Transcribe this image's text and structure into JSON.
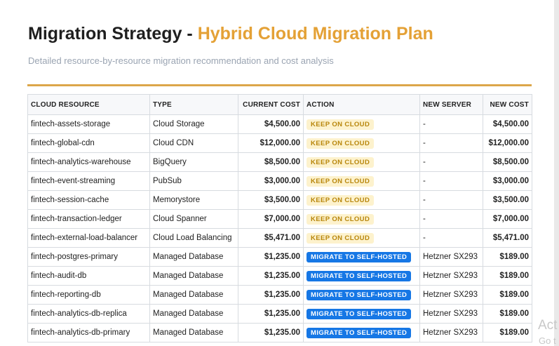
{
  "header": {
    "title_prefix": "Migration Strategy - ",
    "title_highlight": "Hybrid Cloud Migration Plan",
    "subtitle": "Detailed resource-by-resource migration recommendation and cost analysis"
  },
  "table": {
    "columns": [
      "CLOUD RESOURCE",
      "TYPE",
      "CURRENT COST",
      "ACTION",
      "NEW SERVER",
      "NEW COST"
    ],
    "rows": [
      {
        "resource": "fintech-assets-storage",
        "type": "Cloud Storage",
        "current_cost": "$4,500.00",
        "action": "KEEP ON CLOUD",
        "action_kind": "keep",
        "new_server": "-",
        "new_cost": "$4,500.00"
      },
      {
        "resource": "fintech-global-cdn",
        "type": "Cloud CDN",
        "current_cost": "$12,000.00",
        "action": "KEEP ON CLOUD",
        "action_kind": "keep",
        "new_server": "-",
        "new_cost": "$12,000.00"
      },
      {
        "resource": "fintech-analytics-warehouse",
        "type": "BigQuery",
        "current_cost": "$8,500.00",
        "action": "KEEP ON CLOUD",
        "action_kind": "keep",
        "new_server": "-",
        "new_cost": "$8,500.00"
      },
      {
        "resource": "fintech-event-streaming",
        "type": "PubSub",
        "current_cost": "$3,000.00",
        "action": "KEEP ON CLOUD",
        "action_kind": "keep",
        "new_server": "-",
        "new_cost": "$3,000.00"
      },
      {
        "resource": "fintech-session-cache",
        "type": "Memorystore",
        "current_cost": "$3,500.00",
        "action": "KEEP ON CLOUD",
        "action_kind": "keep",
        "new_server": "-",
        "new_cost": "$3,500.00"
      },
      {
        "resource": "fintech-transaction-ledger",
        "type": "Cloud Spanner",
        "current_cost": "$7,000.00",
        "action": "KEEP ON CLOUD",
        "action_kind": "keep",
        "new_server": "-",
        "new_cost": "$7,000.00"
      },
      {
        "resource": "fintech-external-load-balancer",
        "type": "Cloud Load Balancing",
        "current_cost": "$5,471.00",
        "action": "KEEP ON CLOUD",
        "action_kind": "keep",
        "new_server": "-",
        "new_cost": "$5,471.00"
      },
      {
        "resource": "fintech-postgres-primary",
        "type": "Managed Database",
        "current_cost": "$1,235.00",
        "action": "MIGRATE TO SELF-HOSTED",
        "action_kind": "migrate",
        "new_server": "Hetzner SX293",
        "new_cost": "$189.00"
      },
      {
        "resource": "fintech-audit-db",
        "type": "Managed Database",
        "current_cost": "$1,235.00",
        "action": "MIGRATE TO SELF-HOSTED",
        "action_kind": "migrate",
        "new_server": "Hetzner SX293",
        "new_cost": "$189.00"
      },
      {
        "resource": "fintech-reporting-db",
        "type": "Managed Database",
        "current_cost": "$1,235.00",
        "action": "MIGRATE TO SELF-HOSTED",
        "action_kind": "migrate",
        "new_server": "Hetzner SX293",
        "new_cost": "$189.00"
      },
      {
        "resource": "fintech-analytics-db-replica",
        "type": "Managed Database",
        "current_cost": "$1,235.00",
        "action": "MIGRATE TO SELF-HOSTED",
        "action_kind": "migrate",
        "new_server": "Hetzner SX293",
        "new_cost": "$189.00"
      },
      {
        "resource": "fintech-analytics-db-primary",
        "type": "Managed Database",
        "current_cost": "$1,235.00",
        "action": "MIGRATE TO SELF-HOSTED",
        "action_kind": "migrate",
        "new_server": "Hetzner SX293",
        "new_cost": "$189.00"
      }
    ]
  },
  "overlay": {
    "activation_line1": "Act",
    "activation_line2": "Go t"
  }
}
